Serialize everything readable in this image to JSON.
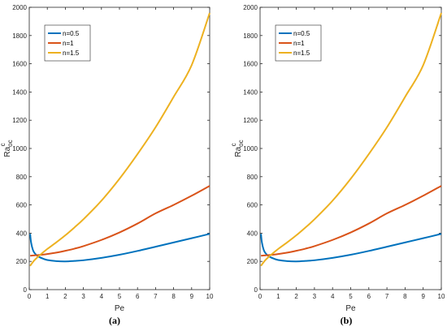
{
  "chart_data": [
    {
      "type": "line",
      "caption": "(a)",
      "xlabel": "Pe",
      "ylabel_base": "Ra",
      "ylabel_sup": "c",
      "ylabel_sub": "oc",
      "xlim": [
        0,
        10
      ],
      "ylim": [
        0,
        2000
      ],
      "xticks": [
        0,
        1,
        2,
        3,
        4,
        5,
        6,
        7,
        8,
        9,
        10
      ],
      "yticks": [
        0,
        200,
        400,
        600,
        800,
        1000,
        1200,
        1400,
        1600,
        1800,
        2000
      ],
      "legend_position": "top-left",
      "grid": false,
      "x": [
        0.05,
        0.1,
        0.2,
        0.3,
        0.5,
        0.75,
        1,
        1.5,
        2,
        2.5,
        3,
        4,
        5,
        6,
        7,
        8,
        9,
        10
      ],
      "series": [
        {
          "name": "n=0.5",
          "color": "#0072BD",
          "values": [
            395,
            335,
            282,
            258,
            235,
            220,
            210,
            202,
            200,
            203,
            208,
            225,
            247,
            274,
            304,
            334,
            364,
            395
          ]
        },
        {
          "name": "n=1",
          "color": "#D95319",
          "values": [
            240,
            241,
            242,
            243,
            245,
            248,
            252,
            262,
            275,
            290,
            308,
            352,
            405,
            468,
            540,
            600,
            665,
            735
          ]
        },
        {
          "name": "n=1.5",
          "color": "#EDB120",
          "values": [
            168,
            178,
            195,
            210,
            235,
            262,
            288,
            335,
            385,
            440,
            498,
            630,
            785,
            960,
            1150,
            1365,
            1590,
            1960
          ]
        }
      ]
    },
    {
      "type": "line",
      "caption": "(b)",
      "xlabel": "Pe",
      "ylabel_base": "Ra",
      "ylabel_sup": "c",
      "ylabel_sub": "oc",
      "xlim": [
        0,
        10
      ],
      "ylim": [
        0,
        2000
      ],
      "xticks": [
        0,
        1,
        2,
        3,
        4,
        5,
        6,
        7,
        8,
        9,
        10
      ],
      "yticks": [
        0,
        200,
        400,
        600,
        800,
        1000,
        1200,
        1400,
        1600,
        1800,
        2000
      ],
      "legend_position": "top-left",
      "grid": false,
      "x": [
        0.05,
        0.1,
        0.2,
        0.3,
        0.5,
        0.75,
        1,
        1.5,
        2,
        2.5,
        3,
        4,
        5,
        6,
        7,
        8,
        9,
        10
      ],
      "series": [
        {
          "name": "n=0.5",
          "color": "#0072BD",
          "values": [
            395,
            335,
            282,
            258,
            235,
            220,
            210,
            202,
            200,
            203,
            208,
            225,
            247,
            274,
            304,
            334,
            364,
            395
          ]
        },
        {
          "name": "n=1",
          "color": "#D95319",
          "values": [
            240,
            241,
            242,
            243,
            245,
            248,
            252,
            262,
            275,
            290,
            308,
            352,
            405,
            468,
            540,
            600,
            665,
            735
          ]
        },
        {
          "name": "n=1.5",
          "color": "#EDB120",
          "values": [
            168,
            178,
            195,
            210,
            235,
            262,
            288,
            335,
            385,
            440,
            498,
            630,
            785,
            960,
            1150,
            1365,
            1590,
            1960
          ]
        }
      ]
    }
  ]
}
